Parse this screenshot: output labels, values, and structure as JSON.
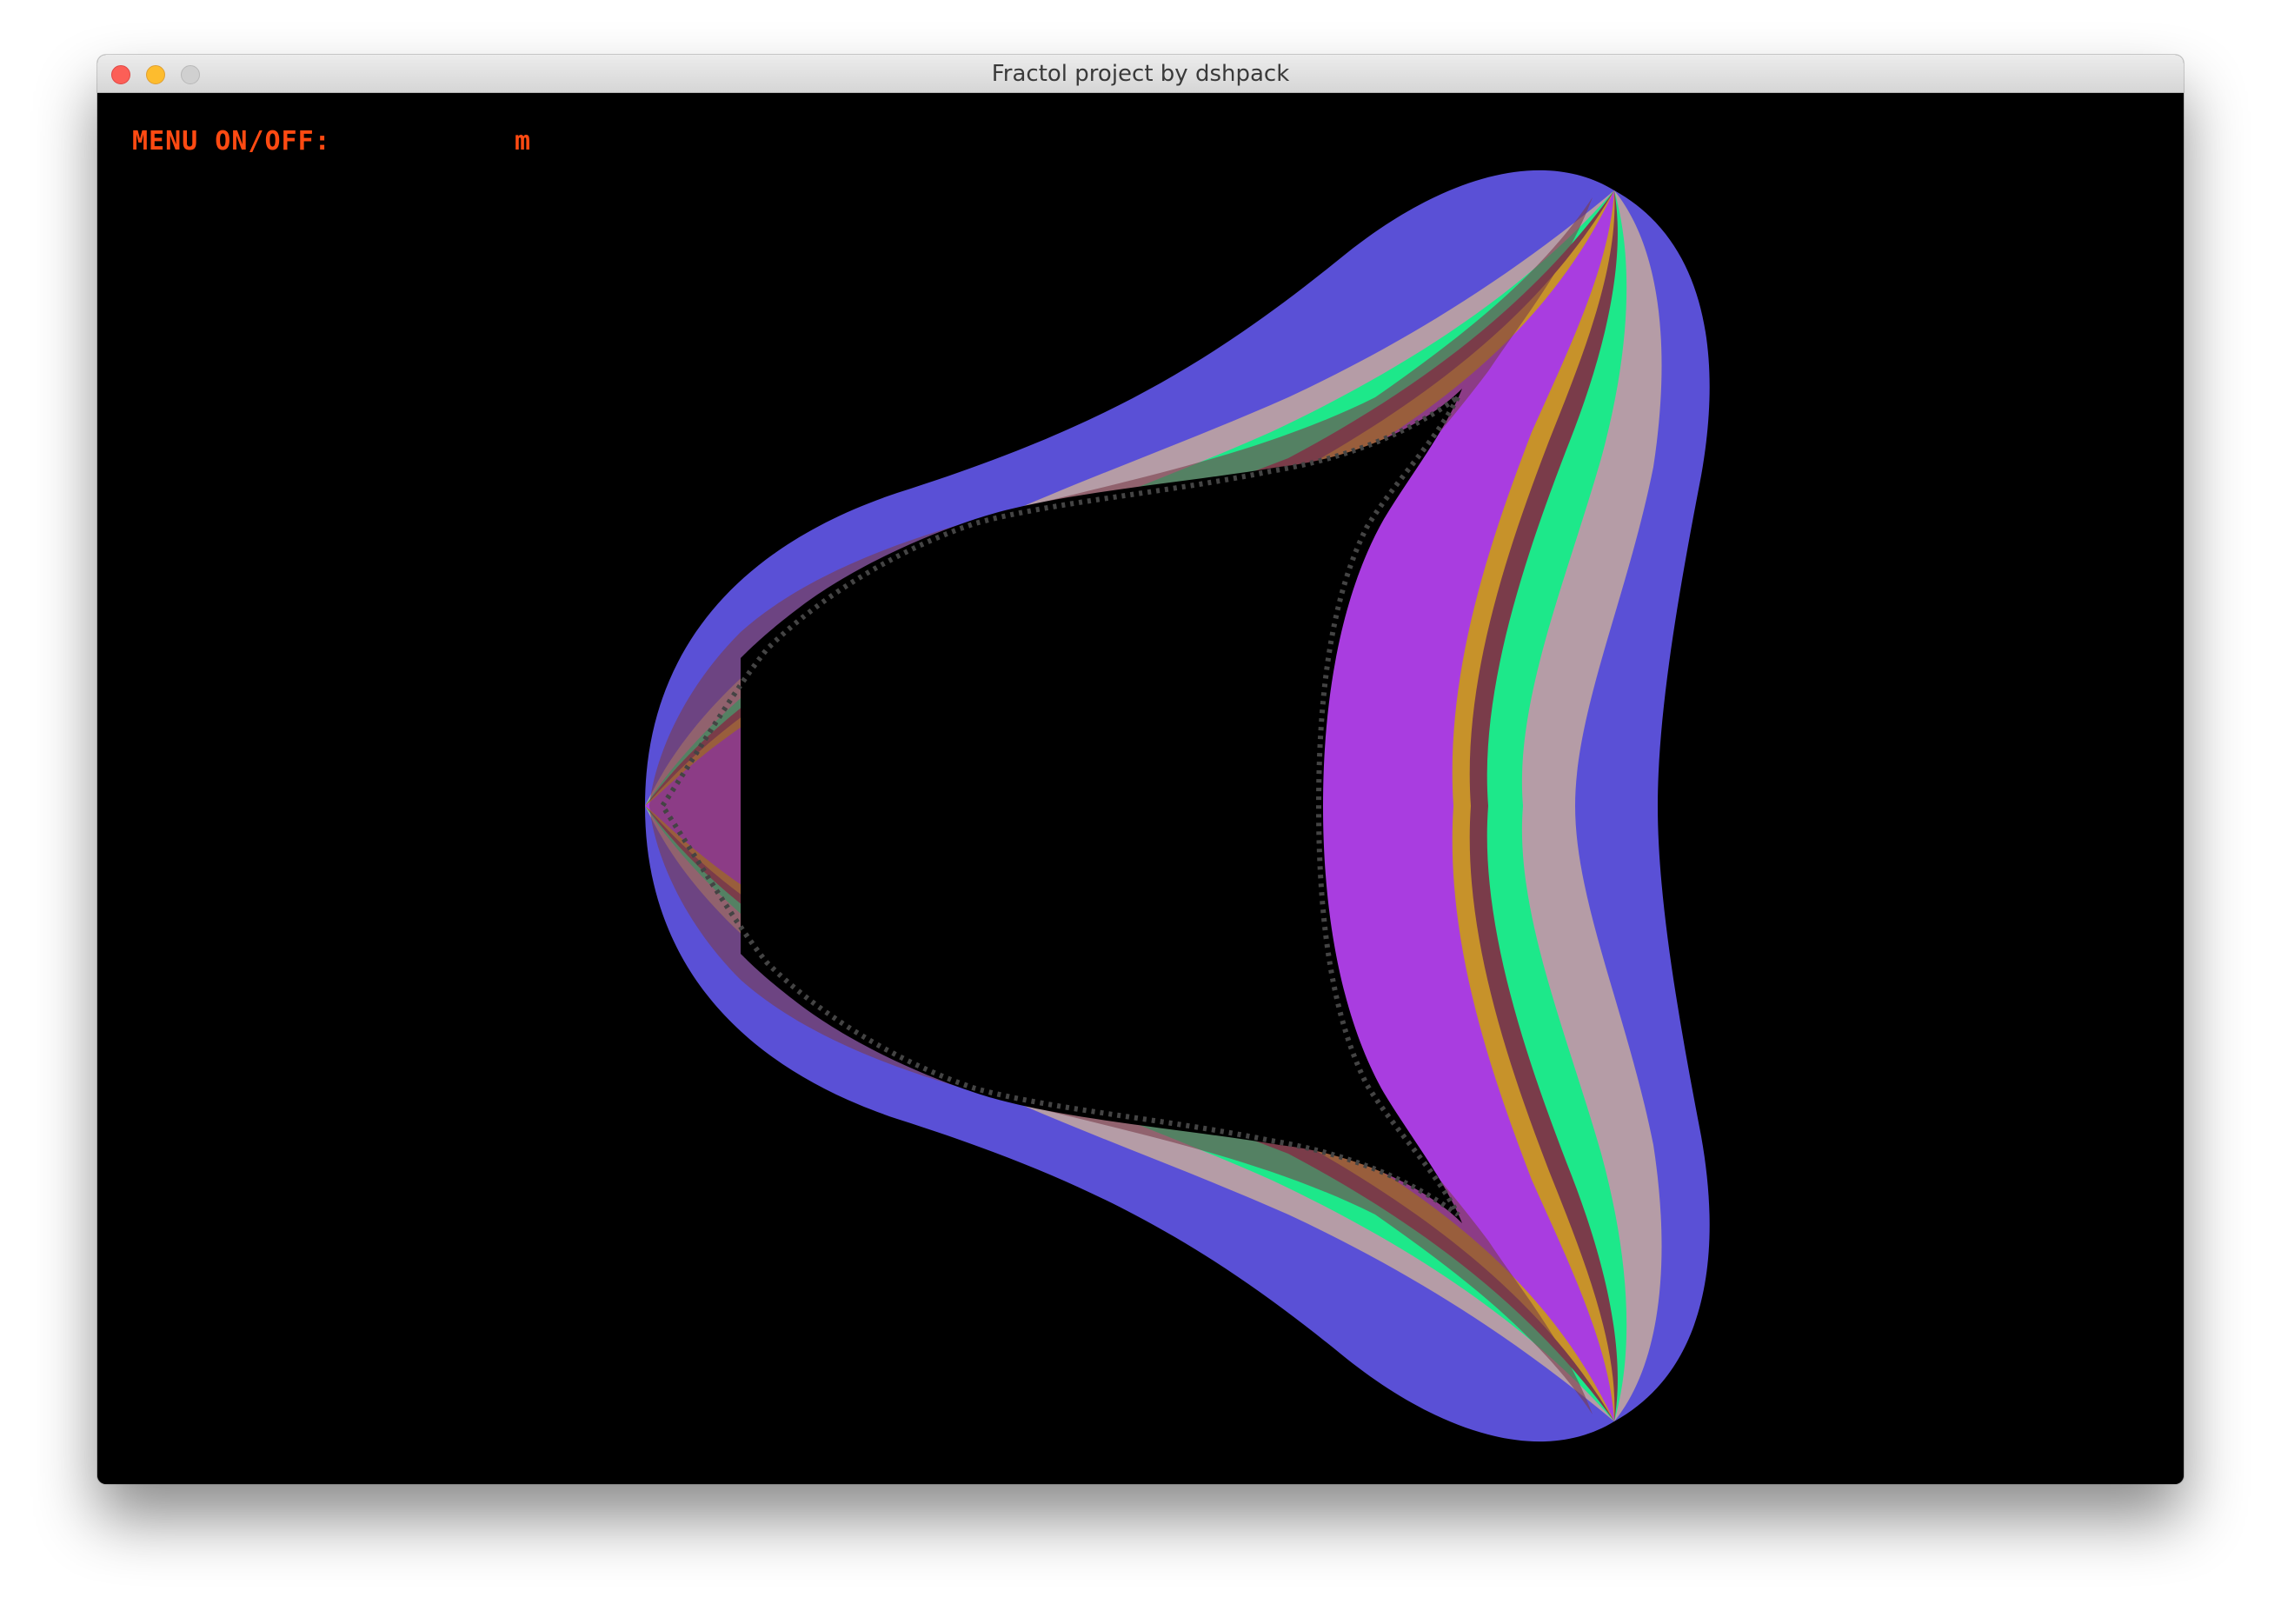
{
  "window": {
    "title": "Fractol project by dshpack"
  },
  "menu": {
    "label": "MENU ON/OFF:",
    "key": "m"
  },
  "fractal": {
    "colors": [
      "#5a50d6",
      "#b59ca6",
      "#1de88a",
      "#7a3c4a",
      "#c7922a",
      "#a93de0",
      "#000000"
    ]
  }
}
